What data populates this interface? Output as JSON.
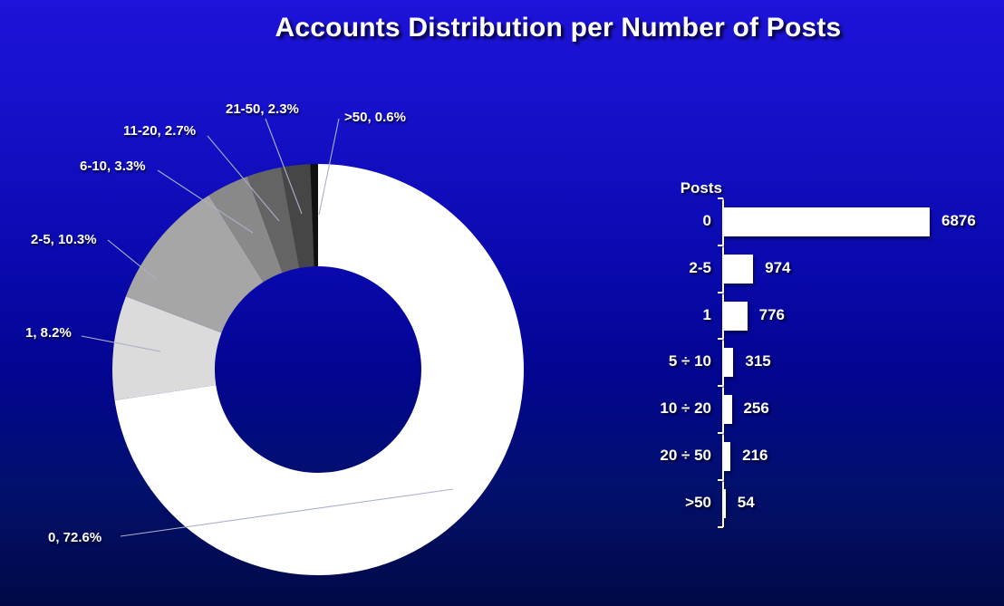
{
  "title": "Accounts Distribution per Number of Posts",
  "colors": {
    "background_top": "#1e13da",
    "background_bottom": "#010945",
    "text": "#ffffff",
    "bar_fill": "#ffffff",
    "leader_line": "#aab0c8"
  },
  "chart_data": [
    {
      "type": "pie",
      "subtype": "donut",
      "direction": "clockwise",
      "start_angle_deg": 0,
      "legend_position": "callout-labels",
      "unit": "percent",
      "slices": [
        {
          "label": "0",
          "pct": 72.6,
          "color": "#ffffff",
          "callout": "0, 72.6%"
        },
        {
          "label": "1",
          "pct": 8.2,
          "color": "#dbdbdb",
          "callout": "1, 8.2%"
        },
        {
          "label": "2-5",
          "pct": 10.3,
          "color": "#a6a6a6",
          "callout": "2-5, 10.3%"
        },
        {
          "label": "6-10",
          "pct": 3.3,
          "color": "#898989",
          "callout": "6-10, 3.3%"
        },
        {
          "label": "11-20",
          "pct": 2.7,
          "color": "#646464",
          "callout": "11-20, 2.7%"
        },
        {
          "label": "21-50",
          "pct": 2.3,
          "color": "#464646",
          "callout": "21-50, 2.3%"
        },
        {
          "label": ">50",
          "pct": 0.6,
          "color": "#101010",
          "callout": ">50, 0.6%"
        }
      ]
    },
    {
      "type": "bar",
      "orientation": "horizontal",
      "axis_title": "Posts",
      "categories": [
        "0",
        "2-5",
        "1",
        "5 ÷ 10",
        "10 ÷ 20",
        "20 ÷ 50",
        ">50"
      ],
      "values": [
        6876,
        974,
        776,
        315,
        256,
        216,
        54
      ],
      "xlim": [
        0,
        6876
      ],
      "grid": false,
      "value_labels": "outside-end"
    }
  ]
}
